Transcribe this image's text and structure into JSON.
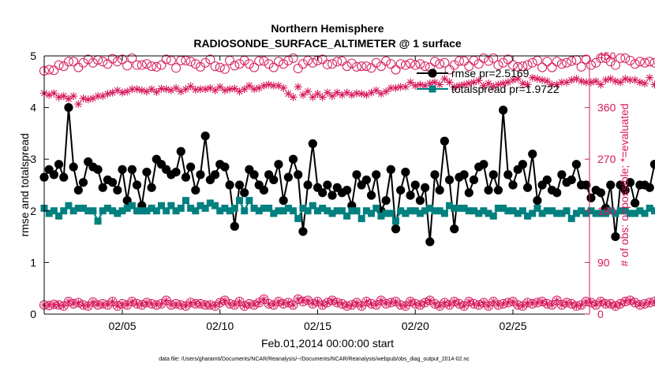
{
  "chart_data": {
    "type": "line",
    "title": "Northern Hemisphere",
    "subtitle": "RADIOSONDE_SURFACE_ALTIMETER @ 1 surface",
    "xlabel": "Feb.01,2014 00:00:00 start",
    "ylabel_left": "rmse and totalspread",
    "ylabel_right": "# of obs: o=possible; *=evaluated",
    "footnote": "data file: /Users/gharamti/Documents/NCAR/Reanalysis/~/Documents/NCAR/Reanalysis/webpub/obs_diag_output_2014-02.nc",
    "xlim": [
      1,
      28.92
    ],
    "ylim_left": [
      0,
      5
    ],
    "ylim_right": [
      0,
      450
    ],
    "x_ticks": [
      5,
      10,
      15,
      20,
      25
    ],
    "x_tick_labels": [
      "02/05",
      "02/10",
      "02/15",
      "02/20",
      "02/25"
    ],
    "y_left_ticks": [
      0,
      1,
      2,
      3,
      4,
      5
    ],
    "y_left_tick_labels": [
      "0",
      "1",
      "2",
      "3",
      "4",
      "5"
    ],
    "y_right_ticks": [
      0,
      90,
      180,
      270,
      360,
      450
    ],
    "y_right_tick_labels": [
      "0",
      "90",
      "180",
      "270",
      "360",
      "450"
    ],
    "x_step": 0.25,
    "colors": {
      "rmse": "#000000",
      "totalspread": "#00807f",
      "obs": "#d6185c"
    },
    "legend": {
      "position": "top-right",
      "entries": [
        "rmse pr=2.5169",
        "totalspread pr=1.9722"
      ]
    },
    "series": [
      {
        "name": "rmse",
        "axis": "left",
        "values": [
          2.65,
          2.8,
          2.7,
          2.9,
          2.65,
          4.0,
          2.85,
          2.4,
          2.55,
          2.95,
          2.85,
          2.8,
          2.45,
          2.6,
          2.55,
          2.4,
          2.8,
          2.2,
          2.8,
          2.5,
          2.1,
          2.75,
          2.45,
          3.0,
          2.9,
          2.8,
          2.7,
          2.75,
          3.15,
          2.65,
          2.85,
          2.4,
          2.7,
          3.45,
          2.6,
          2.7,
          2.9,
          2.85,
          2.5,
          1.7,
          2.5,
          2.35,
          2.8,
          2.7,
          2.5,
          2.4,
          2.7,
          2.6,
          2.9,
          2.2,
          2.65,
          3.0,
          2.7,
          1.6,
          2.5,
          3.3,
          2.45,
          2.35,
          2.5,
          2.3,
          2.45,
          2.35,
          2.4,
          2.1,
          2.7,
          2.5,
          2.6,
          2.3,
          2.7,
          2.0,
          2.2,
          2.8,
          1.65,
          2.4,
          2.75,
          2.3,
          2.5,
          2.2,
          2.45,
          1.4,
          2.7,
          2.4,
          3.35,
          2.6,
          1.65,
          2.65,
          2.7,
          2.35,
          2.6,
          2.85,
          2.9,
          2.4,
          2.7,
          2.4,
          3.95,
          2.7,
          2.5,
          2.8,
          2.9,
          2.45,
          3.1,
          2.2,
          2.5,
          2.6,
          2.4,
          2.35,
          2.7,
          2.55,
          2.6,
          2.9,
          2.5,
          2.5,
          2.25,
          2.4,
          2.35,
          2.05,
          2.5,
          1.5,
          2.5,
          2.4,
          2.55,
          2.15,
          2.5,
          2.5,
          2.45,
          2.9,
          2.5,
          2.0,
          2.7,
          2.5,
          1.55,
          2.45,
          2.45,
          2.5,
          2.5,
          2.5
        ]
      },
      {
        "name": "totalspread",
        "axis": "left",
        "values": [
          2.05,
          1.95,
          2.0,
          1.9,
          2.0,
          2.1,
          2.0,
          2.05,
          2.05,
          2.0,
          2.0,
          1.8,
          2.0,
          2.05,
          2.0,
          1.95,
          2.0,
          2.05,
          2.1,
          2.0,
          2.0,
          2.0,
          2.05,
          2.0,
          2.1,
          2.0,
          2.1,
          2.0,
          2.05,
          2.2,
          2.05,
          2.0,
          2.1,
          2.05,
          2.15,
          2.1,
          2.0,
          2.05,
          2.0,
          2.05,
          2.2,
          2.0,
          2.2,
          2.05,
          2.0,
          2.05,
          2.05,
          1.95,
          2.0,
          2.0,
          2.05,
          2.0,
          1.85,
          2.05,
          2.0,
          2.1,
          2.0,
          2.05,
          2.0,
          1.95,
          2.0,
          2.0,
          1.9,
          2.0,
          2.0,
          1.85,
          2.0,
          1.95,
          2.05,
          1.9,
          1.95,
          1.95,
          1.8,
          2.0,
          1.95,
          2.0,
          2.0,
          1.95,
          2.0,
          2.05,
          2.0,
          2.0,
          1.95,
          2.1,
          2.05,
          2.05,
          2.05,
          2.0,
          2.0,
          1.95,
          2.0,
          1.95,
          1.9,
          2.05,
          2.05,
          2.0,
          2.0,
          1.95,
          2.0,
          1.9,
          1.95,
          2.05,
          1.95,
          2.0,
          2.0,
          1.95,
          1.95,
          2.0,
          1.85,
          1.95,
          2.0,
          1.95,
          2.0,
          1.95,
          1.95,
          1.95,
          2.0,
          1.95,
          2.0,
          2.0,
          1.95,
          1.95,
          2.0,
          1.95,
          2.05,
          2.0,
          1.95,
          2.0,
          2.0,
          1.95,
          2.0,
          2.05,
          2.0,
          1.95,
          2.05,
          2.0
        ]
      },
      {
        "name": "obs_possible",
        "axis": "right",
        "marker": "circle",
        "values": [
          424,
          426,
          425,
          434,
          432,
          440,
          440,
          430,
          438,
          444,
          438,
          443,
          440,
          436,
          445,
          440,
          444,
          433,
          446,
          434,
          434,
          436,
          432,
          431,
          434,
          444,
          442,
          429,
          442,
          442,
          440,
          436,
          431,
          438,
          444,
          432,
          430,
          427,
          442,
          433,
          436,
          442,
          436,
          430,
          441,
          441,
          436,
          430,
          440,
          436,
          442,
          446,
          428,
          436,
          442,
          438,
          442,
          444,
          435,
          436,
          440,
          441,
          432,
          437,
          431,
          432,
          432,
          429,
          438,
          432,
          441,
          436,
          426,
          436,
          434,
          437,
          434,
          436,
          432,
          430,
          440,
          436,
          438,
          426,
          434,
          441,
          441,
          432,
          442,
          436,
          446,
          441,
          446,
          434,
          438,
          444,
          434,
          431,
          432,
          434,
          438,
          442,
          430,
          440,
          430,
          440,
          436,
          438,
          441,
          443,
          431,
          444,
          434,
          438,
          446,
          446,
          440,
          434,
          446,
          446,
          442,
          436,
          440,
          438,
          440,
          438,
          436,
          434,
          434,
          448,
          441,
          436,
          444,
          438,
          434,
          431
        ]
      },
      {
        "name": "obs_evaluated",
        "axis": "right",
        "marker": "asterisk",
        "values": [
          385,
          382,
          385,
          378,
          380,
          375,
          380,
          366,
          376,
          374,
          376,
          380,
          380,
          384,
          386,
          390,
          386,
          388,
          392,
          392,
          390,
          388,
          392,
          387,
          393,
          392,
          390,
          394,
          388,
          392,
          397,
          391,
          392,
          392,
          394,
          390,
          396,
          390,
          392,
          393,
          388,
          392,
          398,
          392,
          394,
          398,
          400,
          398,
          398,
          394,
          384,
          378,
          396,
          382,
          388,
          378,
          384,
          378,
          386,
          380,
          386,
          382,
          386,
          382,
          385,
          384,
          382,
          386,
          390,
          384,
          388,
          394,
          394,
          396,
          396,
          404,
          398,
          400,
          398,
          402,
          404,
          400,
          410,
          404,
          396,
          398,
          400,
          402,
          404,
          407,
          398,
          402,
          397,
          400,
          402,
          404,
          408,
          410,
          402,
          400,
          412,
          410,
          408,
          406,
          400,
          400,
          404,
          404,
          408,
          410,
          406,
          404,
          404,
          406,
          400,
          408,
          410,
          406,
          404,
          410,
          408,
          408,
          404,
          402,
          412,
          400,
          405,
          410,
          396,
          402,
          408,
          410,
          404,
          400,
          404,
          400
        ]
      },
      {
        "name": "obs_low_possible",
        "axis": "right",
        "marker": "circle-plus",
        "values": [
          16,
          15,
          17,
          16,
          14,
          22,
          18,
          20,
          16,
          14,
          21,
          16,
          18,
          16,
          22,
          14,
          18,
          16,
          22,
          18,
          16,
          20,
          18,
          16,
          18,
          24,
          16,
          18,
          16,
          14,
          20,
          18,
          18,
          16,
          16,
          14,
          20,
          24,
          18,
          16,
          22,
          14,
          18,
          16,
          20,
          26,
          18,
          16,
          22,
          18,
          20,
          16,
          26,
          22,
          24,
          18,
          22,
          16,
          20,
          24,
          20,
          18,
          14,
          16,
          20,
          14,
          22,
          18,
          16,
          24,
          18,
          20,
          22,
          16,
          14,
          22,
          18,
          16,
          20,
          24,
          18,
          14,
          20,
          16,
          22,
          18,
          14,
          22,
          18,
          16,
          20,
          14,
          22,
          16,
          18,
          20,
          22,
          16,
          14,
          20,
          18,
          20,
          22,
          18,
          16,
          24,
          16,
          20,
          18,
          14,
          16,
          22,
          20,
          16,
          22,
          18,
          18,
          14,
          18,
          22,
          24,
          20,
          16,
          18,
          20,
          22,
          18,
          20,
          16,
          22,
          18,
          20,
          24,
          18,
          14,
          0
        ]
      }
    ]
  }
}
